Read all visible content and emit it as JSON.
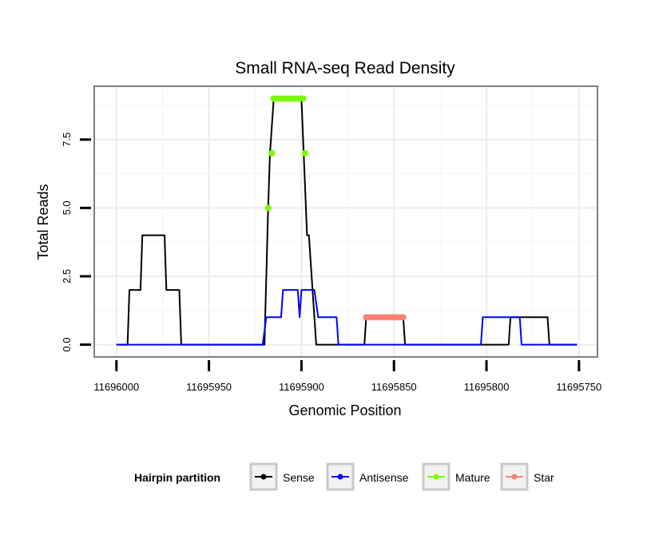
{
  "chart_data": {
    "type": "line",
    "title": "Small RNA-seq Read Density",
    "xlabel": "Genomic Position",
    "ylabel": "Total Reads",
    "x_reversed": true,
    "xlim": [
      11696012,
      11695740
    ],
    "ylim": [
      -0.45,
      9.45
    ],
    "x_ticks": [
      11696000,
      11695950,
      11695900,
      11695850,
      11695800,
      11695750
    ],
    "x_tick_labels": [
      "11696000",
      "11695950",
      "11695900",
      "11695850",
      "11695800",
      "11695750"
    ],
    "y_ticks": [
      0,
      2.5,
      5,
      7.5
    ],
    "y_tick_labels": [
      "0.0",
      "2.5",
      "5.0",
      "7.5"
    ],
    "grid": true,
    "legend": {
      "title": "Hairpin partition",
      "placement": "bottom",
      "entries": [
        {
          "name": "Sense",
          "color": "#000000"
        },
        {
          "name": "Antisense",
          "color": "#0000ff"
        },
        {
          "name": "Mature",
          "color": "#7cfc00"
        },
        {
          "name": "Star",
          "color": "#fa8072"
        }
      ]
    },
    "series": [
      {
        "name": "Sense",
        "color": "#000000",
        "style": "line",
        "points": [
          [
            11696000,
            0
          ],
          [
            11695994,
            0
          ],
          [
            11695993,
            2
          ],
          [
            11695987,
            2
          ],
          [
            11695986,
            4
          ],
          [
            11695974,
            4
          ],
          [
            11695973,
            2
          ],
          [
            11695966,
            2
          ],
          [
            11695965,
            0
          ],
          [
            11695920,
            0
          ],
          [
            11695918,
            5
          ],
          [
            11695917,
            7
          ],
          [
            11695915,
            9
          ],
          [
            11695900,
            9
          ],
          [
            11695897,
            4
          ],
          [
            11695896,
            4
          ],
          [
            11695892,
            0
          ],
          [
            11695866,
            0
          ],
          [
            11695865,
            1
          ],
          [
            11695845,
            1
          ],
          [
            11695844,
            0
          ],
          [
            11695788,
            0
          ],
          [
            11695787,
            1
          ],
          [
            11695767,
            1
          ],
          [
            11695766,
            0
          ],
          [
            11695751,
            0
          ]
        ]
      },
      {
        "name": "Antisense",
        "color": "#0000ff",
        "style": "line",
        "points": [
          [
            11696000,
            0
          ],
          [
            11695921,
            0
          ],
          [
            11695919,
            1
          ],
          [
            11695911,
            1
          ],
          [
            11695910,
            2
          ],
          [
            11695902,
            2
          ],
          [
            11695901,
            1
          ],
          [
            11695900,
            2
          ],
          [
            11695893,
            2
          ],
          [
            11695891,
            1
          ],
          [
            11695881,
            1
          ],
          [
            11695880,
            0
          ],
          [
            11695803,
            0
          ],
          [
            11695802,
            1
          ],
          [
            11695782,
            1
          ],
          [
            11695781,
            0
          ],
          [
            11695751,
            0
          ]
        ]
      },
      {
        "name": "Mature",
        "color": "#7cfc00",
        "style": "points",
        "points": [
          [
            11695918,
            5
          ],
          [
            11695916,
            7
          ],
          [
            11695915,
            9
          ],
          [
            11695913,
            9
          ],
          [
            11695911,
            9
          ],
          [
            11695909,
            9
          ],
          [
            11695907,
            9
          ],
          [
            11695905,
            9
          ],
          [
            11695903,
            9
          ],
          [
            11695901,
            9
          ],
          [
            11695899,
            9
          ],
          [
            11695898,
            7
          ]
        ]
      },
      {
        "name": "Star",
        "color": "#fa8072",
        "style": "points",
        "points": [
          [
            11695865,
            1
          ],
          [
            11695863,
            1
          ],
          [
            11695861,
            1
          ],
          [
            11695859,
            1
          ],
          [
            11695857,
            1
          ],
          [
            11695855,
            1
          ],
          [
            11695853,
            1
          ],
          [
            11695851,
            1
          ],
          [
            11695849,
            1
          ],
          [
            11695847,
            1
          ],
          [
            11695845,
            1
          ]
        ]
      }
    ]
  }
}
